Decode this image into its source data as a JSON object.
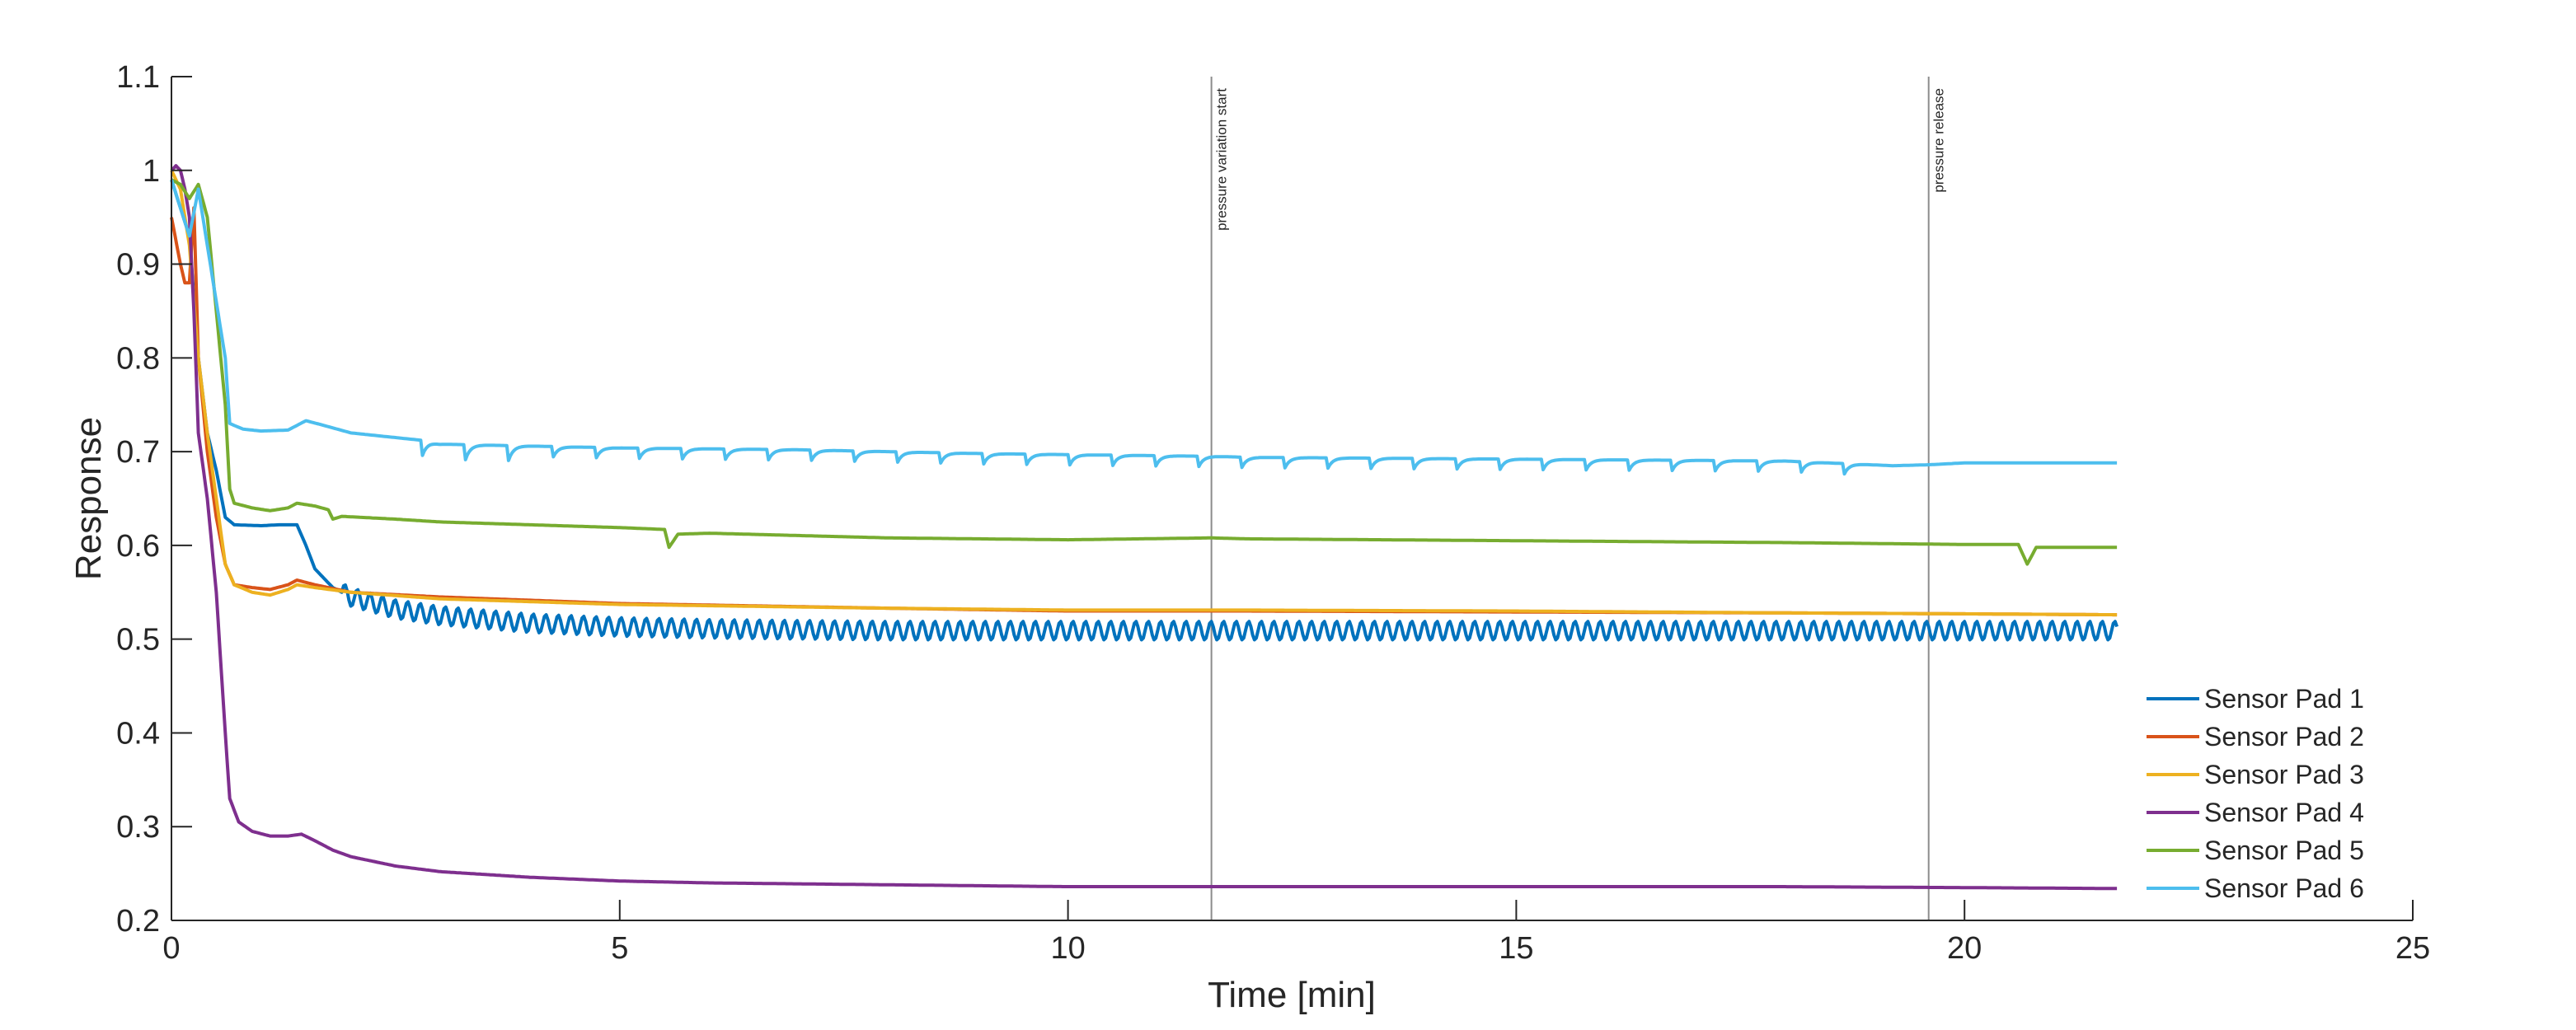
{
  "chart_data": {
    "type": "line",
    "title": "",
    "xlabel": "Time [min]",
    "ylabel": "Response",
    "xlim": [
      0,
      25
    ],
    "ylim": [
      0.2,
      1.1
    ],
    "xticks": [
      0,
      5,
      10,
      15,
      20,
      25
    ],
    "yticks": [
      0.2,
      0.3,
      0.4,
      0.5,
      0.6,
      0.7,
      0.8,
      0.9,
      1,
      1.1
    ],
    "grid": false,
    "legend_position": "bottom-right",
    "annotations": [
      {
        "x": 11.6,
        "text": "pressure variation start"
      },
      {
        "x": 19.6,
        "text": "pressure release"
      }
    ],
    "series": [
      {
        "name": "Sensor Pad 1",
        "color": "#0072BD",
        "points": [
          [
            0,
            0.99
          ],
          [
            0.1,
            0.96
          ],
          [
            0.2,
            0.93
          ],
          [
            0.3,
            0.8
          ],
          [
            0.4,
            0.72
          ],
          [
            0.5,
            0.68
          ],
          [
            0.6,
            0.63
          ],
          [
            0.7,
            0.622
          ],
          [
            1.0,
            0.621
          ],
          [
            1.2,
            0.622
          ],
          [
            1.4,
            0.622
          ],
          [
            1.5,
            0.6
          ],
          [
            1.6,
            0.575
          ],
          [
            1.7,
            0.565
          ],
          [
            1.8,
            0.555
          ],
          [
            2.0,
            0.545
          ],
          [
            2.5,
            0.532
          ],
          [
            3,
            0.525
          ],
          [
            4,
            0.517
          ],
          [
            5,
            0.513
          ],
          [
            6,
            0.511
          ],
          [
            8,
            0.509
          ],
          [
            10,
            0.509
          ],
          [
            12,
            0.509
          ],
          [
            15,
            0.509
          ],
          [
            18,
            0.509
          ],
          [
            20,
            0.509
          ],
          [
            21.7,
            0.509
          ]
        ],
        "oscillation": {
          "from": 1.9,
          "to": 21.7,
          "period": 0.14,
          "amplitude": 0.01
        }
      },
      {
        "name": "Sensor Pad 2",
        "color": "#D95319",
        "points": [
          [
            0,
            0.95
          ],
          [
            0.1,
            0.9
          ],
          [
            0.15,
            0.88
          ],
          [
            0.2,
            0.88
          ],
          [
            0.25,
            0.96
          ],
          [
            0.3,
            0.8
          ],
          [
            0.4,
            0.7
          ],
          [
            0.5,
            0.63
          ],
          [
            0.6,
            0.58
          ],
          [
            0.7,
            0.558
          ],
          [
            0.9,
            0.555
          ],
          [
            1.1,
            0.553
          ],
          [
            1.3,
            0.558
          ],
          [
            1.4,
            0.563
          ],
          [
            1.6,
            0.558
          ],
          [
            2.0,
            0.55
          ],
          [
            3,
            0.545
          ],
          [
            5,
            0.538
          ],
          [
            8,
            0.533
          ],
          [
            10,
            0.53
          ],
          [
            12,
            0.53
          ],
          [
            15,
            0.529
          ],
          [
            18,
            0.528
          ],
          [
            20,
            0.527
          ],
          [
            21.7,
            0.526
          ]
        ]
      },
      {
        "name": "Sensor Pad 3",
        "color": "#EDB120",
        "points": [
          [
            0,
            1.0
          ],
          [
            0.1,
            0.98
          ],
          [
            0.2,
            0.92
          ],
          [
            0.3,
            0.8
          ],
          [
            0.4,
            0.72
          ],
          [
            0.5,
            0.65
          ],
          [
            0.6,
            0.58
          ],
          [
            0.7,
            0.558
          ],
          [
            0.9,
            0.55
          ],
          [
            1.1,
            0.547
          ],
          [
            1.3,
            0.553
          ],
          [
            1.4,
            0.558
          ],
          [
            1.6,
            0.555
          ],
          [
            2.0,
            0.55
          ],
          [
            3,
            0.543
          ],
          [
            5,
            0.537
          ],
          [
            8,
            0.533
          ],
          [
            10,
            0.531
          ],
          [
            12,
            0.531
          ],
          [
            15,
            0.53
          ],
          [
            18,
            0.528
          ],
          [
            20,
            0.527
          ],
          [
            21.7,
            0.526
          ]
        ]
      },
      {
        "name": "Sensor Pad 4",
        "color": "#7E2F8E",
        "points": [
          [
            0,
            1.0
          ],
          [
            0.05,
            1.005
          ],
          [
            0.1,
            1.0
          ],
          [
            0.15,
            0.98
          ],
          [
            0.2,
            0.95
          ],
          [
            0.25,
            0.85
          ],
          [
            0.3,
            0.72
          ],
          [
            0.4,
            0.65
          ],
          [
            0.5,
            0.55
          ],
          [
            0.6,
            0.4
          ],
          [
            0.65,
            0.33
          ],
          [
            0.75,
            0.305
          ],
          [
            0.9,
            0.295
          ],
          [
            1.1,
            0.29
          ],
          [
            1.3,
            0.29
          ],
          [
            1.45,
            0.292
          ],
          [
            1.6,
            0.285
          ],
          [
            1.8,
            0.275
          ],
          [
            2.0,
            0.268
          ],
          [
            2.5,
            0.258
          ],
          [
            3,
            0.252
          ],
          [
            4,
            0.246
          ],
          [
            5,
            0.242
          ],
          [
            6,
            0.24
          ],
          [
            8,
            0.238
          ],
          [
            10,
            0.236
          ],
          [
            12,
            0.236
          ],
          [
            15,
            0.236
          ],
          [
            18,
            0.236
          ],
          [
            20,
            0.235
          ],
          [
            21.7,
            0.234
          ]
        ]
      },
      {
        "name": "Sensor Pad 5",
        "color": "#77AC30",
        "points": [
          [
            0,
            0.99
          ],
          [
            0.1,
            0.985
          ],
          [
            0.2,
            0.97
          ],
          [
            0.3,
            0.985
          ],
          [
            0.4,
            0.95
          ],
          [
            0.5,
            0.85
          ],
          [
            0.6,
            0.75
          ],
          [
            0.65,
            0.66
          ],
          [
            0.7,
            0.645
          ],
          [
            0.9,
            0.64
          ],
          [
            1.1,
            0.637
          ],
          [
            1.3,
            0.64
          ],
          [
            1.4,
            0.645
          ],
          [
            1.6,
            0.642
          ],
          [
            1.75,
            0.638
          ],
          [
            1.8,
            0.628
          ],
          [
            1.9,
            0.631
          ],
          [
            2.5,
            0.628
          ],
          [
            3,
            0.625
          ],
          [
            4,
            0.622
          ],
          [
            5,
            0.619
          ],
          [
            5.5,
            0.617
          ],
          [
            5.55,
            0.598
          ],
          [
            5.65,
            0.612
          ],
          [
            6,
            0.613
          ],
          [
            8,
            0.608
          ],
          [
            10,
            0.606
          ],
          [
            11.6,
            0.608
          ],
          [
            12,
            0.607
          ],
          [
            15,
            0.605
          ],
          [
            18,
            0.603
          ],
          [
            20,
            0.601
          ],
          [
            20.6,
            0.601
          ],
          [
            20.7,
            0.58
          ],
          [
            20.8,
            0.598
          ],
          [
            21.7,
            0.598
          ]
        ]
      },
      {
        "name": "Sensor Pad 6",
        "color": "#4DBEEE",
        "points": [
          [
            0,
            0.99
          ],
          [
            0.1,
            0.96
          ],
          [
            0.2,
            0.93
          ],
          [
            0.3,
            0.98
          ],
          [
            0.4,
            0.92
          ],
          [
            0.5,
            0.86
          ],
          [
            0.6,
            0.8
          ],
          [
            0.65,
            0.73
          ],
          [
            0.8,
            0.724
          ],
          [
            1.0,
            0.722
          ],
          [
            1.3,
            0.723
          ],
          [
            1.5,
            0.733
          ],
          [
            1.7,
            0.728
          ],
          [
            2.0,
            0.72
          ],
          [
            2.5,
            0.715
          ],
          [
            2.8,
            0.712
          ],
          [
            3,
            0.708
          ],
          [
            5,
            0.704
          ],
          [
            7,
            0.702
          ],
          [
            9,
            0.698
          ],
          [
            11.6,
            0.695
          ],
          [
            12,
            0.694
          ],
          [
            15,
            0.692
          ],
          [
            18,
            0.69
          ],
          [
            19.2,
            0.685
          ],
          [
            19.6,
            0.686
          ],
          [
            20,
            0.688
          ],
          [
            21.7,
            0.688
          ]
        ],
        "dips": [
          {
            "from": 2.8,
            "to": 19.0,
            "period": 0.48,
            "depth": 0.016
          }
        ]
      }
    ]
  }
}
